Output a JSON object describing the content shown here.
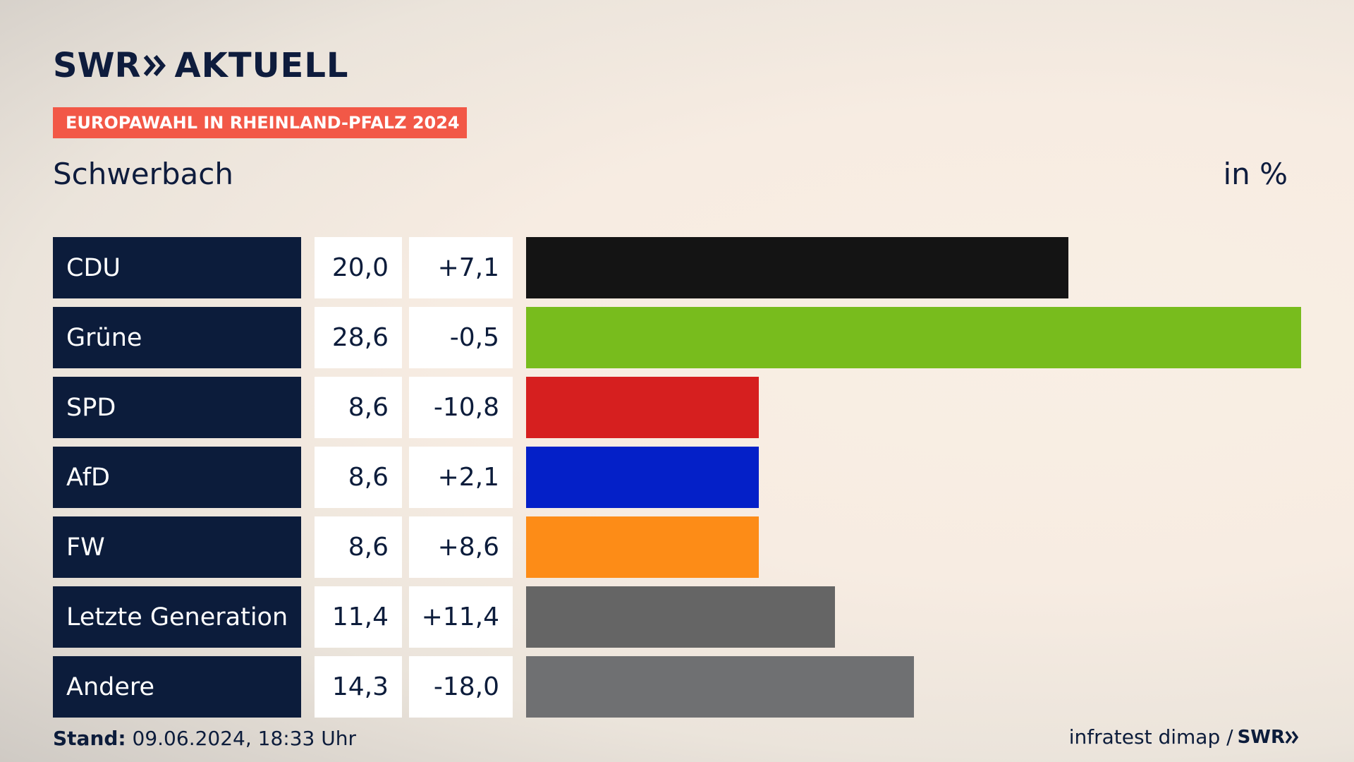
{
  "header": {
    "logo_swr": "SWR",
    "logo_aktuell": "AKTUELL",
    "badge": "EUROPAWAHL IN RHEINLAND-PFALZ 2024",
    "location": "Schwerbach",
    "unit": "in %"
  },
  "footer": {
    "stand_label": "Stand:",
    "stand_value": "09.06.2024, 18:33 Uhr",
    "source": "infratest dimap /",
    "source_logo": "SWR"
  },
  "colors": {
    "navy": "#0c1c3b",
    "badge": "#f25847"
  },
  "chart_data": {
    "type": "bar",
    "orientation": "horizontal",
    "categories": [
      "CDU",
      "Grüne",
      "SPD",
      "AfD",
      "FW",
      "Letzte Generation",
      "Andere"
    ],
    "values": [
      20.0,
      28.6,
      8.6,
      8.6,
      8.6,
      11.4,
      14.3
    ],
    "value_labels": [
      "20,0",
      "28,6",
      "8,6",
      "8,6",
      "8,6",
      "11,4",
      "14,3"
    ],
    "diff_labels": [
      "+7,1",
      "-0,5",
      "-10,8",
      "+2,1",
      "+8,6",
      "+11,4",
      "-18,0"
    ],
    "colors": [
      "#141414",
      "#78bc1d",
      "#d61f1f",
      "#0420c8",
      "#fd8c17",
      "#656565",
      "#6f7072"
    ],
    "xlim": [
      0,
      28.6
    ]
  }
}
